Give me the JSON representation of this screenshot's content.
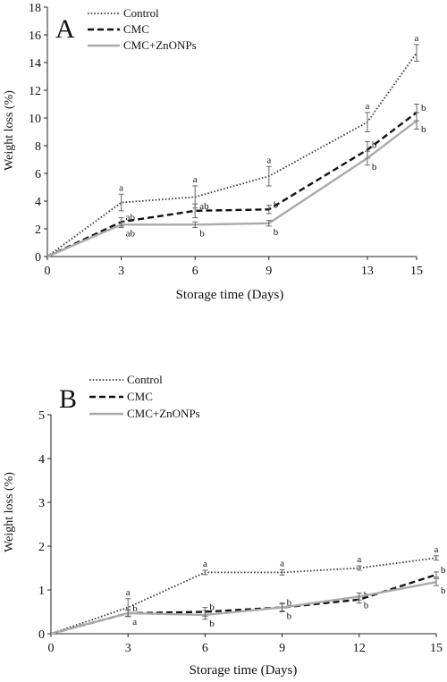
{
  "chart_data": [
    {
      "type": "line",
      "panel_label": "A",
      "xlabel": "Storage time (Days)",
      "ylabel": "Weight  loss (%)",
      "x": [
        0,
        3,
        6,
        9,
        13,
        15
      ],
      "xticks": [
        "0",
        "3",
        "6",
        "9",
        "13",
        "15"
      ],
      "xlim": [
        0,
        15
      ],
      "ylim": [
        0,
        18
      ],
      "yticks": [
        "0",
        "2",
        "4",
        "6",
        "8",
        "10",
        "12",
        "14",
        "16",
        "18"
      ],
      "grid": false,
      "legend_position": "top-left",
      "series": [
        {
          "name": "Control",
          "style": "dotted",
          "color": "#333333",
          "values": [
            0,
            3.9,
            4.3,
            5.8,
            9.7,
            14.7
          ],
          "errors": [
            0,
            0.6,
            0.8,
            0.7,
            0.7,
            0.6
          ],
          "labels": [
            "",
            "a",
            "a",
            "a",
            "a",
            "a"
          ]
        },
        {
          "name": "CMC",
          "style": "dashed",
          "color": "#111111",
          "values": [
            0,
            2.5,
            3.3,
            3.4,
            7.7,
            10.4
          ],
          "errors": [
            0,
            0.3,
            0.5,
            0.3,
            0.6,
            0.6
          ],
          "labels": [
            "",
            "ab",
            "ab",
            "b",
            "b",
            "b"
          ]
        },
        {
          "name": "CMC+ZnONPs",
          "style": "solid",
          "color": "#aaaaaa",
          "values": [
            0,
            2.3,
            2.3,
            2.4,
            7.1,
            9.8
          ],
          "errors": [
            0,
            0.2,
            0.2,
            0.2,
            0.5,
            0.6
          ],
          "labels": [
            "",
            "ab",
            "b",
            "b",
            "b",
            "b"
          ]
        }
      ]
    },
    {
      "type": "line",
      "panel_label": "B",
      "xlabel": "Storage time (Days)",
      "ylabel": "Weight loss (%)",
      "x": [
        0,
        3,
        6,
        9,
        12,
        15
      ],
      "xticks": [
        "0",
        "3",
        "6",
        "9",
        "12",
        "15"
      ],
      "xlim": [
        0,
        15
      ],
      "ylim": [
        0,
        5
      ],
      "yticks": [
        "0",
        "1",
        "2",
        "3",
        "4",
        "5"
      ],
      "grid": false,
      "legend_position": "top-left",
      "series": [
        {
          "name": "Control",
          "style": "dotted",
          "color": "#333333",
          "values": [
            0,
            0.6,
            1.4,
            1.4,
            1.5,
            1.73
          ],
          "errors": [
            0,
            0.2,
            0.05,
            0.06,
            0.05,
            0.05
          ],
          "labels": [
            "",
            "a",
            "a",
            "a",
            "a",
            "a"
          ]
        },
        {
          "name": "CMC",
          "style": "dashed",
          "color": "#111111",
          "values": [
            0,
            0.47,
            0.5,
            0.6,
            0.78,
            1.35
          ],
          "errors": [
            0,
            0.08,
            0.1,
            0.1,
            0.08,
            0.06
          ],
          "labels": [
            "",
            "b",
            "b",
            "b",
            "b",
            "b"
          ]
        },
        {
          "name": "CMC+ZnONPs",
          "style": "solid",
          "color": "#aaaaaa",
          "values": [
            0,
            0.47,
            0.43,
            0.6,
            0.85,
            1.18
          ],
          "errors": [
            0,
            0.07,
            0.1,
            0.08,
            0.08,
            0.08
          ],
          "labels": [
            "",
            "a",
            "b",
            "b",
            "b",
            "b"
          ]
        }
      ]
    }
  ]
}
